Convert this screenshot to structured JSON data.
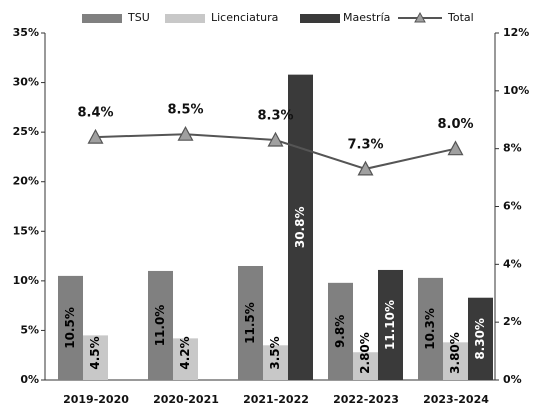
{
  "chart_data": {
    "type": "bar",
    "categories": [
      "2019-2020",
      "2020-2021",
      "2021-2022",
      "2022-2023",
      "2023-2024"
    ],
    "series": [
      {
        "name": "TSU",
        "color": "#808080",
        "values": [
          10.5,
          11.0,
          11.5,
          9.8,
          10.3
        ],
        "value_labels": [
          "10.5%",
          "11.0%",
          "11.5%",
          "9.8%",
          "10.3%"
        ]
      },
      {
        "name": "Licenciatura",
        "color": "#c8c8c8",
        "values": [
          4.5,
          4.2,
          3.5,
          2.8,
          3.8
        ],
        "value_labels": [
          "4.5%",
          "4.2%",
          "3.5%",
          "2.80%",
          "3.80%"
        ]
      },
      {
        "name": "Maestría",
        "color": "#3a3a3a",
        "values": [
          null,
          null,
          30.8,
          11.1,
          8.3
        ],
        "value_labels": [
          null,
          null,
          "30.8%",
          "11.10%",
          "8.30%"
        ]
      },
      {
        "name": "Total",
        "color": "#555555",
        "type": "line",
        "axis": "y2",
        "values": [
          8.4,
          8.5,
          8.3,
          7.3,
          8.0
        ],
        "value_labels": [
          "8.4%",
          "8.5%",
          "8.3%",
          "7.3%",
          "8.0%"
        ]
      }
    ],
    "ylim": [
      0,
      35
    ],
    "yticks": [
      {
        "value": 0,
        "label": "0%"
      },
      {
        "value": 5,
        "label": "5%"
      },
      {
        "value": 10,
        "label": "10%"
      },
      {
        "value": 15,
        "label": "15%"
      },
      {
        "value": 20,
        "label": "20%"
      },
      {
        "value": 25,
        "label": "25%"
      },
      {
        "value": 30,
        "label": "30%"
      },
      {
        "value": 35,
        "label": "35%"
      }
    ],
    "y2lim": [
      0,
      12
    ],
    "y2ticks": [
      {
        "value": 0,
        "label": "0%"
      },
      {
        "value": 2,
        "label": "2%"
      },
      {
        "value": 4,
        "label": "4%"
      },
      {
        "value": 6,
        "label": "6%"
      },
      {
        "value": 8,
        "label": "8%"
      },
      {
        "value": 10,
        "label": "10%"
      },
      {
        "value": 12,
        "label": "12%"
      }
    ]
  }
}
